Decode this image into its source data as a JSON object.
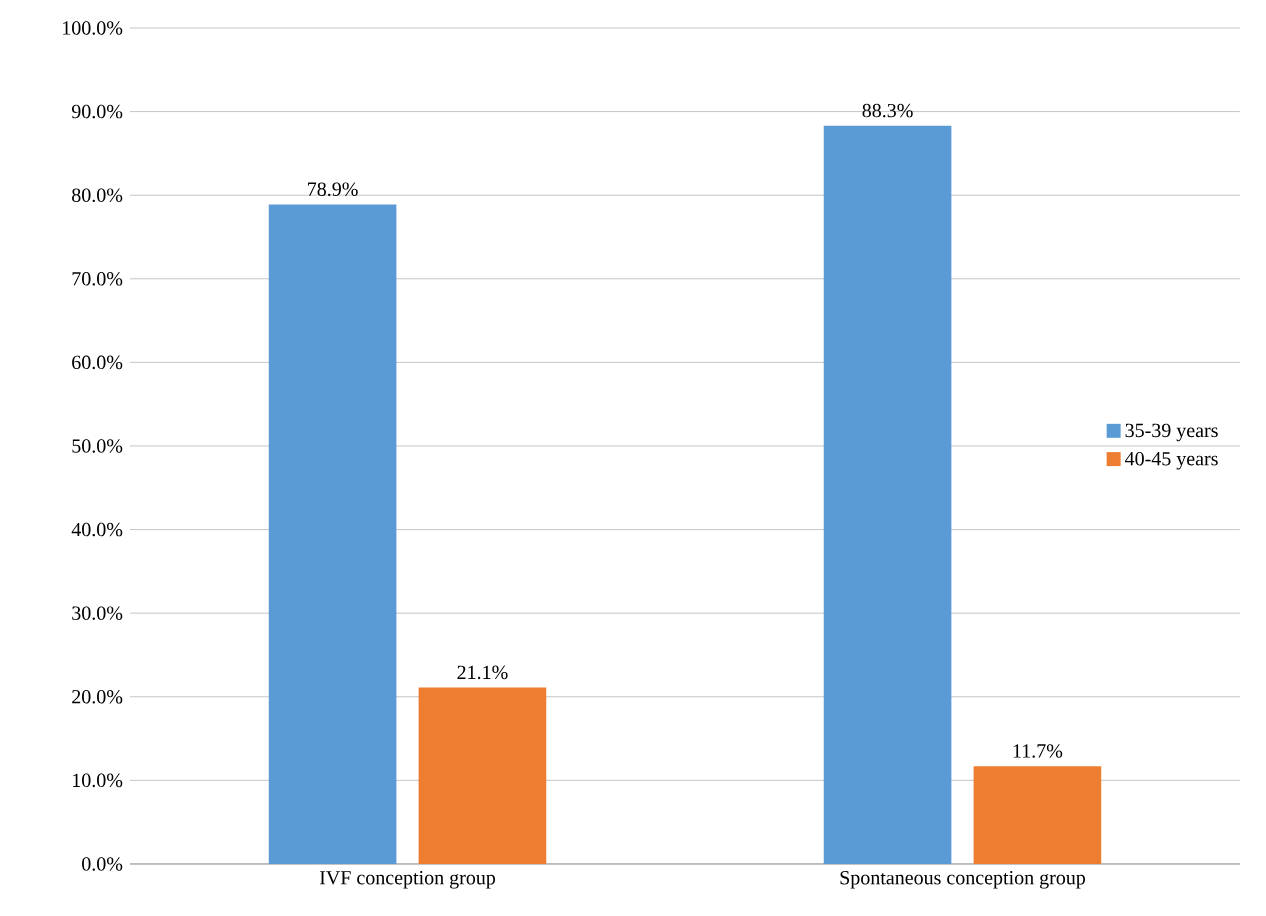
{
  "chart_data": {
    "type": "bar",
    "categories": [
      "IVF conception group",
      "Spontaneous conception group"
    ],
    "series": [
      {
        "name": "35-39 years",
        "color": "#5b9bd5",
        "values": [
          78.9,
          88.3
        ],
        "value_labels": [
          "78.9%",
          "88.3%"
        ]
      },
      {
        "name": "40-45 years",
        "color": "#ed7d31",
        "values": [
          21.1,
          11.7
        ],
        "value_labels": [
          "21.1%",
          "11.7%"
        ]
      }
    ],
    "ylim": [
      0,
      100
    ],
    "yticks": [
      {
        "value": 0,
        "label": "0.0%"
      },
      {
        "value": 10,
        "label": "10.0%"
      },
      {
        "value": 20,
        "label": "20.0%"
      },
      {
        "value": 30,
        "label": "30.0%"
      },
      {
        "value": 40,
        "label": "40.0%"
      },
      {
        "value": 50,
        "label": "50.0%"
      },
      {
        "value": 60,
        "label": "60.0%"
      },
      {
        "value": 70,
        "label": "70.0%"
      },
      {
        "value": 80,
        "label": "80.0%"
      },
      {
        "value": 90,
        "label": "90.0%"
      },
      {
        "value": 100,
        "label": "100.0%"
      }
    ],
    "grid": "y",
    "legend": "right"
  }
}
